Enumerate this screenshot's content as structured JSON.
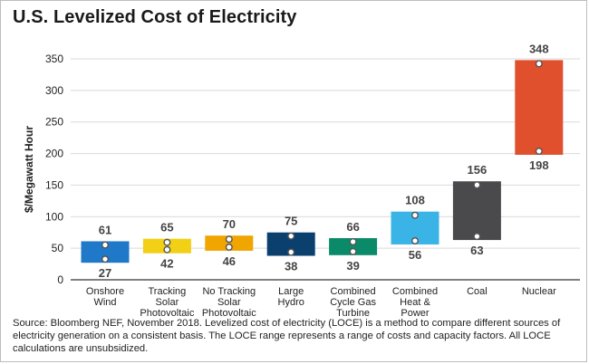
{
  "chart_data": {
    "type": "bar",
    "title": "U.S. Levelized Cost of Electricity",
    "ylabel": "$/Megawatt Hour",
    "xlabel": "",
    "ylim": [
      0,
      350
    ],
    "yticks": [
      0,
      50,
      100,
      150,
      200,
      250,
      300,
      350
    ],
    "grid": true,
    "categories": [
      [
        "Onshore",
        "Wind"
      ],
      [
        "Tracking",
        "Solar",
        "Photovoltaic"
      ],
      [
        "No Tracking",
        "Solar",
        "Photovoltaic"
      ],
      [
        "Large",
        "Hydro"
      ],
      [
        "Combined",
        "Cycle Gas",
        "Turbine"
      ],
      [
        "Combined",
        "Heat &",
        "Power"
      ],
      [
        "Coal"
      ],
      [
        "Nuclear"
      ]
    ],
    "low": [
      27,
      42,
      46,
      38,
      39,
      56,
      63,
      198
    ],
    "high": [
      61,
      65,
      70,
      75,
      66,
      108,
      156,
      348
    ],
    "colors": [
      "#1f78c8",
      "#f2d016",
      "#f0a500",
      "#0b3f6e",
      "#0b8a6a",
      "#3ab4e6",
      "#4a4a4d",
      "#e0502c"
    ]
  },
  "source": "Source: Bloomberg NEF, November 2018. Levelized cost of electricity (LOCE) is a method to compare different sources of electricity generation on a consistent basis. The LOCE range represents a range of costs and capacity factors. All LOCE calculations are unsubsidized."
}
